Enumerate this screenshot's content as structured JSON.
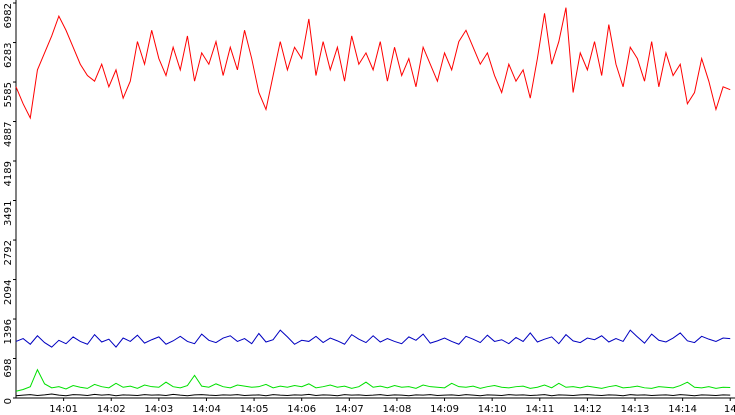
{
  "chart_data": {
    "type": "line",
    "x": [
      0,
      0.15,
      0.3,
      0.45,
      0.6,
      0.75,
      0.9,
      1.05,
      1.2,
      1.35,
      1.5,
      1.65,
      1.8,
      1.95,
      2.1,
      2.25,
      2.4,
      2.55,
      2.7,
      2.85,
      3,
      3.15,
      3.3,
      3.45,
      3.6,
      3.75,
      3.9,
      4.05,
      4.2,
      4.35,
      4.5,
      4.65,
      4.8,
      4.95,
      5.1,
      5.25,
      5.4,
      5.55,
      5.7,
      5.85,
      6,
      6.15,
      6.3,
      6.45,
      6.6,
      6.75,
      6.9,
      7.05,
      7.2,
      7.35,
      7.5,
      7.65,
      7.8,
      7.95,
      8.1,
      8.25,
      8.4,
      8.55,
      8.7,
      8.85,
      9,
      9.15,
      9.3,
      9.45,
      9.6,
      9.75,
      9.9,
      10.05,
      10.2,
      10.35,
      10.5,
      10.65,
      10.8,
      10.95,
      11.1,
      11.25,
      11.4,
      11.55,
      11.7,
      11.85,
      12,
      12.15,
      12.3,
      12.45,
      12.6,
      12.75,
      12.9,
      13.05,
      13.2,
      13.35,
      13.5,
      13.65,
      13.8,
      13.95,
      14.1,
      14.25,
      14.4,
      14.55,
      14.7,
      14.85,
      15
    ],
    "series": [
      {
        "color": "#ff0000",
        "values": [
          5500,
          5200,
          4950,
          5800,
          6100,
          6400,
          6750,
          6500,
          6200,
          5900,
          5700,
          5600,
          5900,
          5500,
          5800,
          5300,
          5600,
          6300,
          5900,
          6500,
          6000,
          5700,
          6200,
          5800,
          6400,
          5600,
          6100,
          5900,
          6300,
          5700,
          6200,
          5800,
          6500,
          6000,
          5400,
          5100,
          5700,
          6300,
          5800,
          6200,
          6000,
          6700,
          5700,
          6300,
          5800,
          6200,
          5600,
          6400,
          5900,
          6100,
          5800,
          6300,
          5600,
          6200,
          5700,
          6000,
          5500,
          6200,
          5900,
          5600,
          6100,
          5800,
          6300,
          6500,
          6200,
          5900,
          6100,
          5700,
          5400,
          5900,
          5600,
          5800,
          5300,
          6000,
          6800,
          5900,
          6300,
          6900,
          5400,
          6100,
          5800,
          6300,
          5700,
          6600,
          5900,
          5500,
          6200,
          6000,
          5600,
          6300,
          5500,
          6100,
          5700,
          5900,
          5200,
          5400,
          6000,
          5600,
          5100,
          5500,
          5450
        ]
      },
      {
        "color": "#0000c0",
        "values": [
          1000,
          1050,
          950,
          1100,
          980,
          900,
          1020,
          960,
          1080,
          1000,
          950,
          1120,
          990,
          1040,
          900,
          1060,
          1000,
          1110,
          970,
          1030,
          1080,
          950,
          1010,
          1090,
          1000,
          960,
          1130,
          1020,
          980,
          1060,
          1100,
          1000,
          1050,
          960,
          1140,
          990,
          1030,
          1200,
          1080,
          950,
          1020,
          1000,
          1090,
          980,
          1060,
          1010,
          950,
          1120,
          1040,
          980,
          1100,
          990,
          1050,
          1000,
          960,
          1080,
          1020,
          1130,
          970,
          1010,
          1060,
          1000,
          950,
          1090,
          1040,
          980,
          1110,
          1000,
          1030,
          960,
          1070,
          1000,
          1150,
          990,
          1040,
          1080,
          960,
          1120,
          1010,
          980,
          1060,
          1030,
          1100,
          990,
          1050,
          1000,
          1200,
          1080,
          970,
          1130,
          1020,
          990,
          1060,
          1150,
          1010,
          980,
          1090,
          1040,
          1000,
          1060,
          1050
        ]
      },
      {
        "color": "#00e000",
        "values": [
          120,
          150,
          200,
          500,
          250,
          180,
          200,
          160,
          220,
          190,
          170,
          240,
          200,
          180,
          260,
          190,
          210,
          170,
          230,
          200,
          190,
          280,
          200,
          180,
          220,
          400,
          210,
          190,
          250,
          200,
          180,
          230,
          210,
          190,
          200,
          240,
          180,
          210,
          190,
          220,
          200,
          250,
          180,
          200,
          230,
          190,
          210,
          170,
          200,
          280,
          190,
          210,
          180,
          220,
          190,
          200,
          170,
          230,
          200,
          190,
          180,
          260,
          200,
          190,
          210,
          170,
          200,
          220,
          190,
          180,
          200,
          210,
          170,
          190,
          230,
          180,
          260,
          190,
          200,
          180,
          210,
          190,
          170,
          200,
          220,
          180,
          190,
          210,
          180,
          170,
          200,
          190,
          180,
          220,
          280,
          190,
          180,
          200,
          170,
          190,
          185
        ]
      },
      {
        "color": "#000000",
        "values": [
          40,
          50,
          60,
          45,
          55,
          70,
          50,
          40,
          60,
          55,
          45,
          65,
          50,
          60,
          40,
          55,
          50,
          45,
          60,
          50,
          55,
          45,
          65,
          50,
          40,
          55,
          60,
          50,
          45,
          55,
          50,
          60,
          45,
          50,
          55,
          40,
          60,
          50,
          45,
          55,
          50,
          65,
          45,
          55,
          50,
          40,
          60,
          50,
          55,
          45,
          50,
          60,
          45,
          55,
          50,
          40,
          55,
          50,
          60,
          45,
          50,
          55,
          45,
          60,
          50,
          40,
          55,
          50,
          45,
          60,
          50,
          55,
          45,
          50,
          60,
          40,
          55,
          50,
          45,
          55,
          60,
          50,
          45,
          55,
          50,
          40,
          60,
          50,
          55,
          45,
          50,
          55,
          45,
          60,
          50,
          40,
          55,
          50,
          45,
          55,
          50
        ]
      }
    ],
    "xlim": [
      0,
      15.1
    ],
    "xticks": [
      {
        "value": 1,
        "label": "14:01"
      },
      {
        "value": 2,
        "label": "14:02"
      },
      {
        "value": 3,
        "label": "14:03"
      },
      {
        "value": 4,
        "label": "14:04"
      },
      {
        "value": 5,
        "label": "14:05"
      },
      {
        "value": 6,
        "label": "14:06"
      },
      {
        "value": 7,
        "label": "14:07"
      },
      {
        "value": 8,
        "label": "14:08"
      },
      {
        "value": 9,
        "label": "14:09"
      },
      {
        "value": 10,
        "label": "14:10"
      },
      {
        "value": 11,
        "label": "14:11"
      },
      {
        "value": 12,
        "label": "14:12"
      },
      {
        "value": 13,
        "label": "14:13"
      },
      {
        "value": 14,
        "label": "14:14"
      },
      {
        "value": 15,
        "label": "14"
      }
    ],
    "ylim": [
      0,
      6982
    ],
    "yticks": [
      0,
      698,
      1396,
      2094,
      2792,
      3491,
      4189,
      4887,
      5585,
      6283,
      6982
    ]
  }
}
